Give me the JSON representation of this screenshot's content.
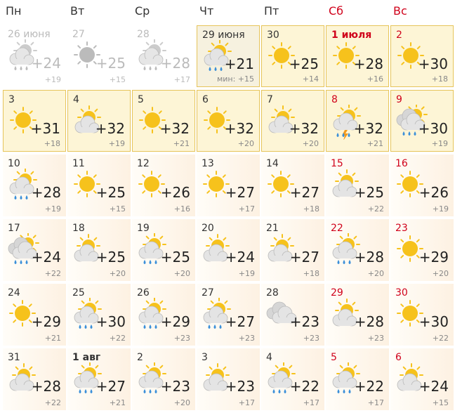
{
  "header": {
    "weekdays": [
      "Пн",
      "Вт",
      "Ср",
      "Чт",
      "Пт",
      "Сб",
      "Вс"
    ]
  },
  "weeks": [
    [
      {
        "date": "26 июня",
        "max": "+24",
        "min": "+19"
      },
      {
        "date": "27",
        "max": "+25",
        "min": "+15"
      },
      {
        "date": "28",
        "max": "+28",
        "min": "+17"
      },
      {
        "date": "29 июня",
        "max": "+21",
        "min": "мин: +15"
      },
      {
        "date": "30",
        "max": "+25",
        "min": "+14"
      },
      {
        "date": "1 июля",
        "max": "+28",
        "min": "+16"
      },
      {
        "date": "2",
        "max": "+30",
        "min": "+18"
      }
    ],
    [
      {
        "date": "3",
        "max": "+31",
        "min": "+18"
      },
      {
        "date": "4",
        "max": "+32",
        "min": "+19"
      },
      {
        "date": "5",
        "max": "+32",
        "min": "+21"
      },
      {
        "date": "6",
        "max": "+32",
        "min": "+20"
      },
      {
        "date": "7",
        "max": "+32",
        "min": "+20"
      },
      {
        "date": "8",
        "max": "+32",
        "min": "+21"
      },
      {
        "date": "9",
        "max": "+30",
        "min": "+19"
      }
    ],
    [
      {
        "date": "10",
        "max": "+28",
        "min": "+19"
      },
      {
        "date": "11",
        "max": "+25",
        "min": "+15"
      },
      {
        "date": "12",
        "max": "+26",
        "min": "+16"
      },
      {
        "date": "13",
        "max": "+27",
        "min": "+17"
      },
      {
        "date": "14",
        "max": "+27",
        "min": "+18"
      },
      {
        "date": "15",
        "max": "+25",
        "min": "+22"
      },
      {
        "date": "16",
        "max": "+26",
        "min": "+19"
      }
    ],
    [
      {
        "date": "17",
        "max": "+24",
        "min": "+22"
      },
      {
        "date": "18",
        "max": "+25",
        "min": "+20"
      },
      {
        "date": "19",
        "max": "+25",
        "min": "+20"
      },
      {
        "date": "20",
        "max": "+24",
        "min": "+19"
      },
      {
        "date": "21",
        "max": "+27",
        "min": "+18"
      },
      {
        "date": "22",
        "max": "+28",
        "min": "+20"
      },
      {
        "date": "23",
        "max": "+29",
        "min": "+20"
      }
    ],
    [
      {
        "date": "24",
        "max": "+29",
        "min": "+21"
      },
      {
        "date": "25",
        "max": "+30",
        "min": "+22"
      },
      {
        "date": "26",
        "max": "+29",
        "min": "+23"
      },
      {
        "date": "27",
        "max": "+27",
        "min": "+23"
      },
      {
        "date": "28",
        "max": "+23",
        "min": "+23"
      },
      {
        "date": "29",
        "max": "+28",
        "min": "+23"
      },
      {
        "date": "30",
        "max": "+30",
        "min": "+22"
      }
    ],
    [
      {
        "date": "31",
        "max": "+28",
        "min": "+22"
      },
      {
        "date": "1 авг",
        "max": "+27",
        "min": "+21"
      },
      {
        "date": "2",
        "max": "+23",
        "min": "+20"
      },
      {
        "date": "3",
        "max": "+23",
        "min": "+17"
      },
      {
        "date": "4",
        "max": "+22",
        "min": "+17"
      },
      {
        "date": "5",
        "max": "+22",
        "min": "+17"
      },
      {
        "date": "6",
        "max": "+24",
        "min": "+15"
      }
    ]
  ]
}
